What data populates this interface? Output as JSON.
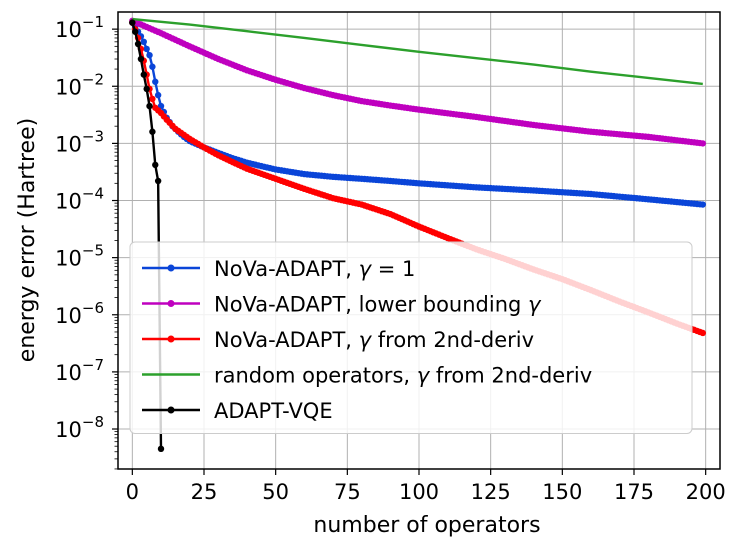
{
  "chart_data": {
    "type": "line",
    "xlabel": "number of operators",
    "ylabel": "energy error (Hartree)",
    "xlim": [
      -5,
      205
    ],
    "ylim_log10": [
      -8.7,
      -0.7
    ],
    "grid": true,
    "legend_position": "lower-left",
    "x_ticks": [
      0,
      25,
      50,
      75,
      100,
      125,
      150,
      175,
      200
    ],
    "x_tick_labels": [
      "0",
      "25",
      "50",
      "75",
      "100",
      "125",
      "150",
      "175",
      "200"
    ],
    "y_ticks_log10": [
      -1,
      -2,
      -3,
      -4,
      -5,
      -6,
      -7,
      -8
    ],
    "y_tick_labels": [
      {
        "base": "10",
        "exp": "−1"
      },
      {
        "base": "10",
        "exp": "−2"
      },
      {
        "base": "10",
        "exp": "−3"
      },
      {
        "base": "10",
        "exp": "−4"
      },
      {
        "base": "10",
        "exp": "−5"
      },
      {
        "base": "10",
        "exp": "−6"
      },
      {
        "base": "10",
        "exp": "−7"
      },
      {
        "base": "10",
        "exp": "−8"
      }
    ],
    "series": [
      {
        "name": "NoVa-ADAPT, γ = 1",
        "legend_parts": [
          {
            "t": "NoVa-ADAPT, "
          },
          {
            "t": "γ",
            "i": true
          },
          {
            "t": " = 1"
          }
        ],
        "color": "#0a45d8",
        "markers": true,
        "points": [
          [
            0,
            0.13
          ],
          [
            1,
            0.11
          ],
          [
            2,
            0.09
          ],
          [
            3,
            0.075
          ],
          [
            4,
            0.06
          ],
          [
            5,
            0.045
          ],
          [
            6,
            0.035
          ],
          [
            7,
            0.022
          ],
          [
            8,
            0.012
          ],
          [
            9,
            0.007
          ],
          [
            10,
            0.0045
          ],
          [
            12,
            0.0028
          ],
          [
            14,
            0.002
          ],
          [
            16,
            0.0016
          ],
          [
            18,
            0.0013
          ],
          [
            20,
            0.0011
          ],
          [
            25,
            0.00085
          ],
          [
            30,
            0.00068
          ],
          [
            35,
            0.00055
          ],
          [
            40,
            0.00046
          ],
          [
            45,
            0.0004
          ],
          [
            50,
            0.00035
          ],
          [
            60,
            0.00029
          ],
          [
            70,
            0.00026
          ],
          [
            80,
            0.00024
          ],
          [
            90,
            0.00022
          ],
          [
            100,
            0.0002
          ],
          [
            120,
            0.00017
          ],
          [
            140,
            0.00015
          ],
          [
            160,
            0.00013
          ],
          [
            180,
            0.000105
          ],
          [
            199,
            8.5e-05
          ]
        ]
      },
      {
        "name": "NoVa-ADAPT, lower bounding γ",
        "legend_parts": [
          {
            "t": "NoVa-ADAPT, lower bounding "
          },
          {
            "t": "γ",
            "i": true
          }
        ],
        "color": "#bf00bf",
        "markers": true,
        "points": [
          [
            0,
            0.14
          ],
          [
            10,
            0.085
          ],
          [
            20,
            0.05
          ],
          [
            30,
            0.03
          ],
          [
            40,
            0.019
          ],
          [
            50,
            0.013
          ],
          [
            60,
            0.0093
          ],
          [
            70,
            0.007
          ],
          [
            80,
            0.0055
          ],
          [
            90,
            0.0046
          ],
          [
            100,
            0.0039
          ],
          [
            120,
            0.0029
          ],
          [
            140,
            0.0021
          ],
          [
            160,
            0.0016
          ],
          [
            180,
            0.0013
          ],
          [
            199,
            0.001
          ]
        ]
      },
      {
        "name": "NoVa-ADAPT, γ from 2nd-deriv",
        "legend_parts": [
          {
            "t": "NoVa-ADAPT, "
          },
          {
            "t": "γ",
            "i": true
          },
          {
            "t": " from 2nd-deriv"
          }
        ],
        "color": "#ff0000",
        "markers": true,
        "points": [
          [
            0,
            0.13
          ],
          [
            1,
            0.1
          ],
          [
            2,
            0.07
          ],
          [
            3,
            0.045
          ],
          [
            4,
            0.028
          ],
          [
            5,
            0.016
          ],
          [
            6,
            0.009
          ],
          [
            7,
            0.006
          ],
          [
            8,
            0.0042
          ],
          [
            10,
            0.0034
          ],
          [
            12,
            0.0026
          ],
          [
            15,
            0.0018
          ],
          [
            20,
            0.0012
          ],
          [
            25,
            0.00085
          ],
          [
            30,
            0.00062
          ],
          [
            35,
            0.00047
          ],
          [
            40,
            0.00036
          ],
          [
            50,
            0.00024
          ],
          [
            60,
            0.00016
          ],
          [
            70,
            0.00011
          ],
          [
            80,
            8.5e-05
          ],
          [
            90,
            5.8e-05
          ],
          [
            100,
            3.5e-05
          ],
          [
            110,
            2.2e-05
          ],
          [
            120,
            1.4e-05
          ],
          [
            130,
            9.5e-06
          ],
          [
            140,
            6.2e-06
          ],
          [
            150,
            4.2e-06
          ],
          [
            160,
            2.7e-06
          ],
          [
            170,
            1.7e-06
          ],
          [
            180,
            1.1e-06
          ],
          [
            190,
            7e-07
          ],
          [
            199,
            4.8e-07
          ]
        ]
      },
      {
        "name": "random operators, γ from 2nd-deriv",
        "legend_parts": [
          {
            "t": "random operators, "
          },
          {
            "t": "γ",
            "i": true
          },
          {
            "t": " from 2nd-deriv"
          }
        ],
        "color": "#2ca02c",
        "markers": false,
        "points": [
          [
            0,
            0.15
          ],
          [
            20,
            0.12
          ],
          [
            40,
            0.092
          ],
          [
            60,
            0.07
          ],
          [
            80,
            0.053
          ],
          [
            100,
            0.04
          ],
          [
            120,
            0.031
          ],
          [
            140,
            0.024
          ],
          [
            160,
            0.018
          ],
          [
            180,
            0.014
          ],
          [
            199,
            0.011
          ]
        ]
      },
      {
        "name": "ADAPT-VQE",
        "legend_parts": [
          {
            "t": "ADAPT-VQE"
          }
        ],
        "color": "#000000",
        "markers": true,
        "points": [
          [
            0,
            0.13
          ],
          [
            1,
            0.09
          ],
          [
            2,
            0.055
          ],
          [
            3,
            0.03
          ],
          [
            4,
            0.016
          ],
          [
            5,
            0.009
          ],
          [
            6,
            0.0045
          ],
          [
            7,
            0.0016
          ],
          [
            8,
            0.00042
          ],
          [
            9,
            0.00022
          ],
          [
            10,
            4.5e-09
          ]
        ]
      }
    ]
  }
}
